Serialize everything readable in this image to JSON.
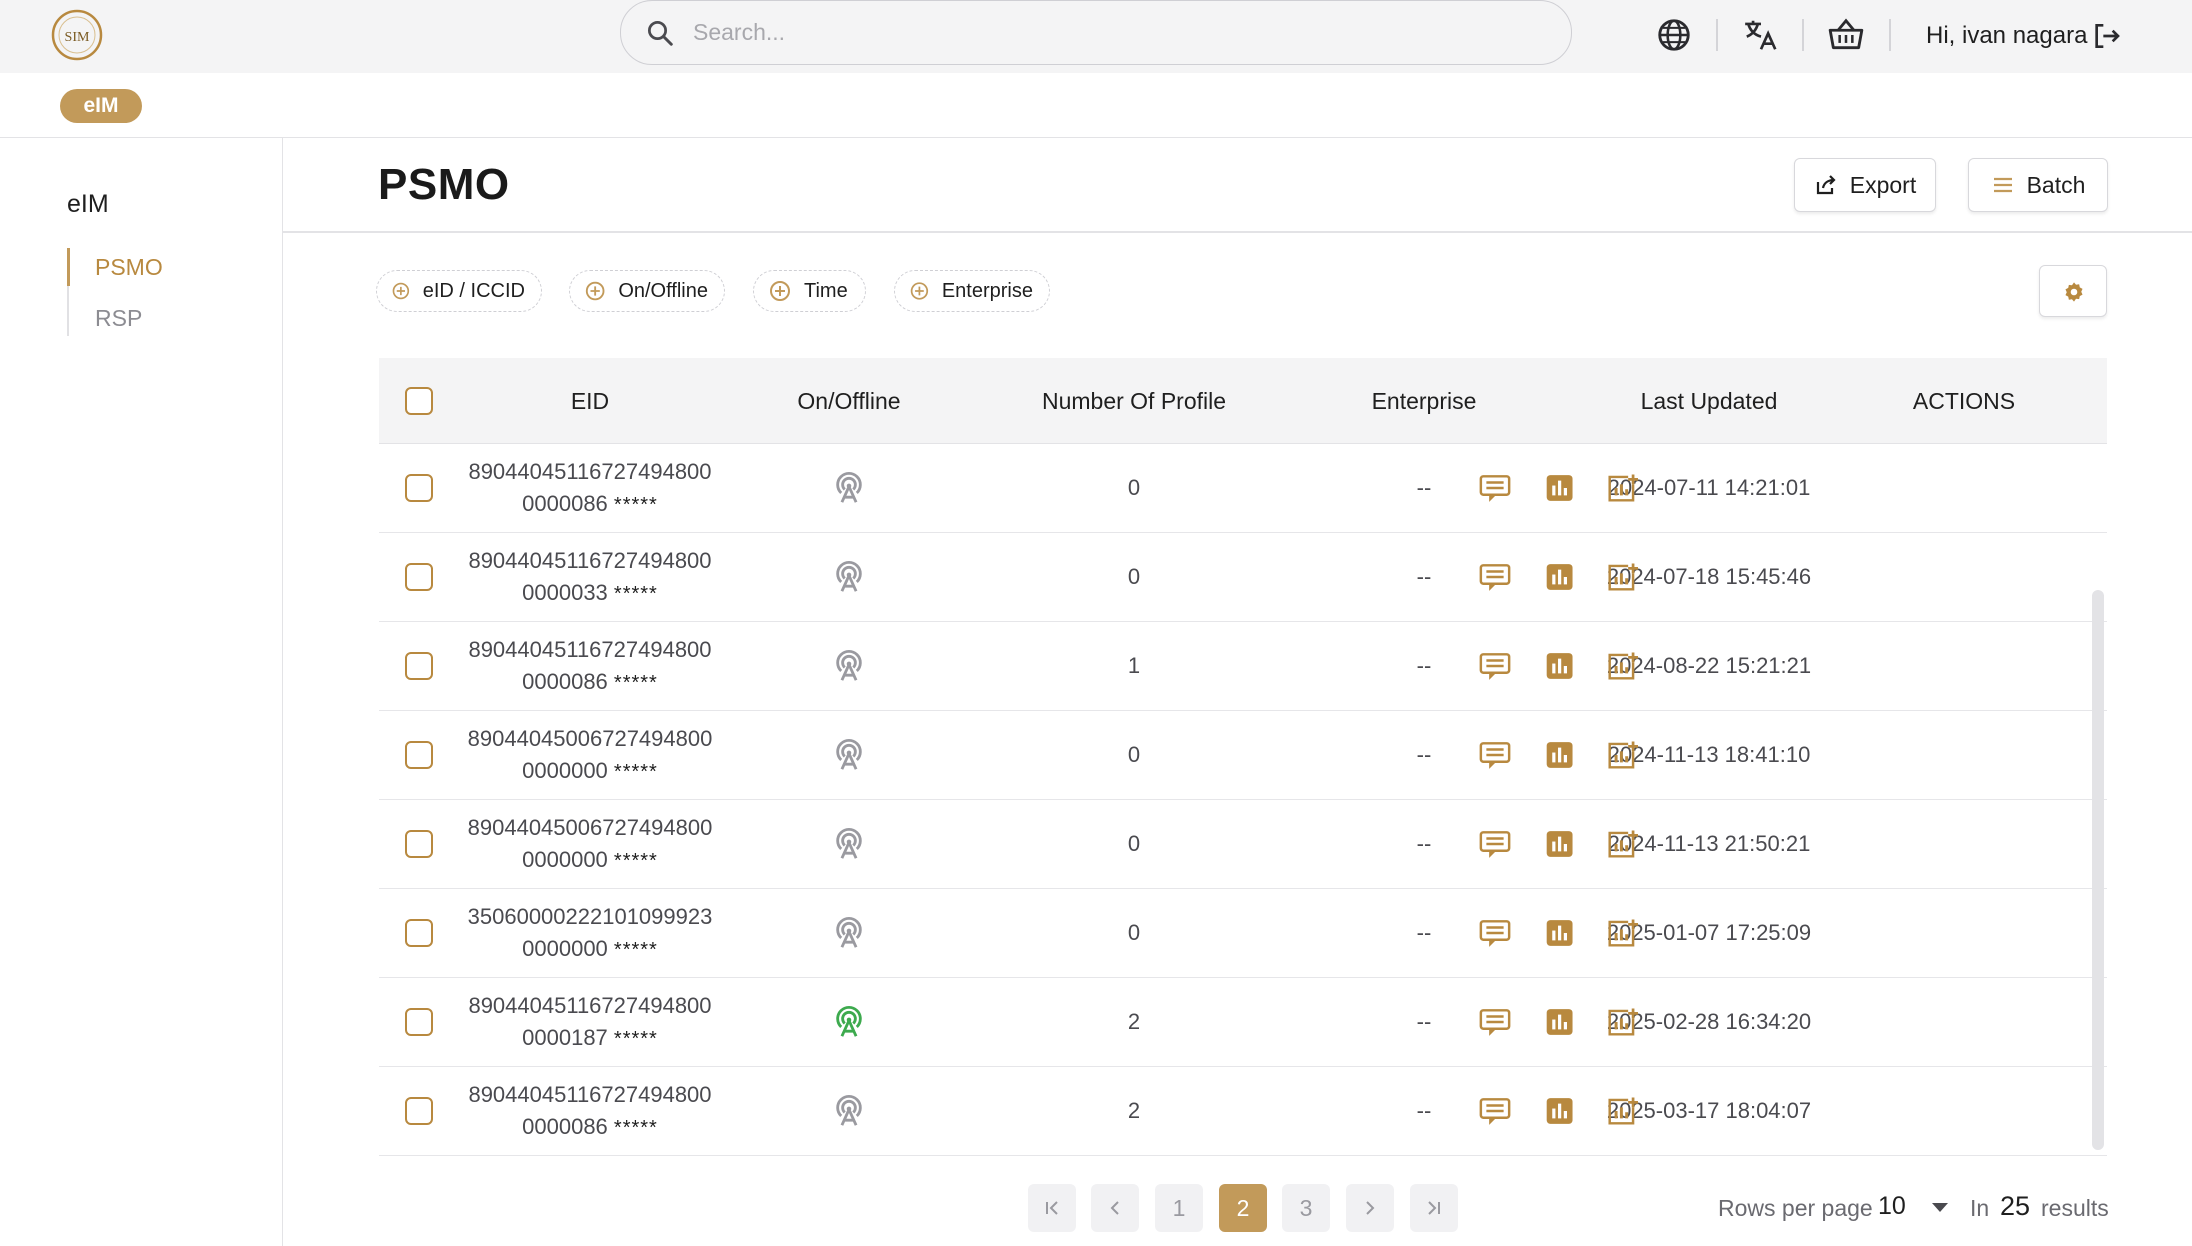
{
  "header": {
    "logo_text": "SIM",
    "search_placeholder": "Search...",
    "greeting": "Hi, ivan nagara"
  },
  "subbar": {
    "chip": "eIM"
  },
  "sidebar": {
    "title": "eIM",
    "items": [
      {
        "label": "PSMO",
        "active": true
      },
      {
        "label": "RSP",
        "active": false
      }
    ]
  },
  "page": {
    "title": "PSMO",
    "export_label": "Export",
    "batch_label": "Batch"
  },
  "filters": [
    "eID / ICCID",
    "On/Offline",
    "Time",
    "Enterprise"
  ],
  "table": {
    "columns": [
      "EID",
      "On/Offline",
      "Number Of Profile",
      "Enterprise",
      "Last Updated",
      "ACTIONS"
    ],
    "rows": [
      {
        "eid1": "89044045116727494800",
        "eid2": "0000086",
        "mask": "*****",
        "online": false,
        "profiles": "0",
        "enterprise": "--",
        "updated": "2024-07-11 14:21:01"
      },
      {
        "eid1": "89044045116727494800",
        "eid2": "0000033",
        "mask": "*****",
        "online": false,
        "profiles": "0",
        "enterprise": "--",
        "updated": "2024-07-18 15:45:46"
      },
      {
        "eid1": "89044045116727494800",
        "eid2": "0000086",
        "mask": "*****",
        "online": false,
        "profiles": "1",
        "enterprise": "--",
        "updated": "2024-08-22 15:21:21"
      },
      {
        "eid1": "89044045006727494800",
        "eid2": "0000000",
        "mask": "*****",
        "online": false,
        "profiles": "0",
        "enterprise": "--",
        "updated": "2024-11-13 18:41:10"
      },
      {
        "eid1": "89044045006727494800",
        "eid2": "0000000",
        "mask": "*****",
        "online": false,
        "profiles": "0",
        "enterprise": "--",
        "updated": "2024-11-13 21:50:21"
      },
      {
        "eid1": "35060000222101099923",
        "eid2": "0000000",
        "mask": "*****",
        "online": false,
        "profiles": "0",
        "enterprise": "--",
        "updated": "2025-01-07 17:25:09"
      },
      {
        "eid1": "89044045116727494800",
        "eid2": "0000187",
        "mask": "*****",
        "online": true,
        "profiles": "2",
        "enterprise": "--",
        "updated": "2025-02-28 16:34:20"
      },
      {
        "eid1": "89044045116727494800",
        "eid2": "0000086",
        "mask": "*****",
        "online": false,
        "profiles": "2",
        "enterprise": "--",
        "updated": "2025-03-17 18:04:07"
      }
    ]
  },
  "pagination": {
    "pages": [
      "1",
      "2",
      "3"
    ],
    "current": "2",
    "rows_per_page_label": "Rows per page",
    "rows_per_page": "10",
    "in_label": "In",
    "total": "25",
    "results_label": "results"
  },
  "colors": {
    "accent": "#c29a5a",
    "online": "#3daa4e",
    "offline": "#9a9aa0"
  },
  "icons": [
    "search-icon",
    "globe-icon",
    "translate-icon",
    "basket-icon",
    "logout-icon",
    "export-icon",
    "menu-icon",
    "plus-circle-icon",
    "gear-icon",
    "signal-icon",
    "message-icon",
    "bar-chart-icon",
    "add-chart-icon",
    "first-page-icon",
    "prev-page-icon",
    "next-page-icon",
    "last-page-icon"
  ]
}
